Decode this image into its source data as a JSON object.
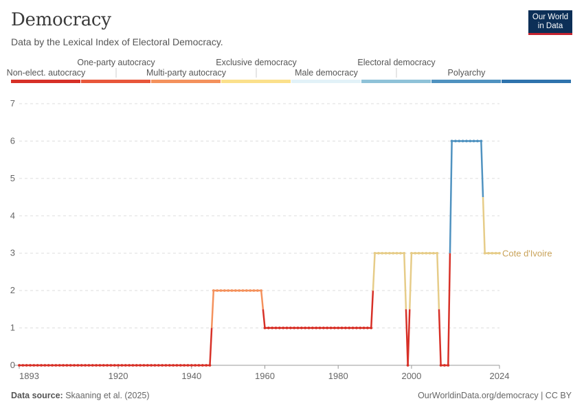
{
  "header": {
    "title": "Democracy",
    "subtitle": "Data by the Lexical Index of Electoral Democracy.",
    "logo_line1": "Our World",
    "logo_line2": "in Data"
  },
  "footer": {
    "source_label": "Data source:",
    "source_text": "Skaaning et al. (2025)",
    "right": "OurWorldinData.org/democracy | CC BY"
  },
  "legend": [
    {
      "label": "Non-elect. autocracy",
      "color": "#d73027"
    },
    {
      "label": "One-party autocracy",
      "color": "#e8563a"
    },
    {
      "label": "Multi-party autocracy",
      "color": "#f4915c"
    },
    {
      "label": "Exclusive democracy",
      "color": "#fbe08b"
    },
    {
      "label": "Male democracy",
      "color": "#e2f2f8"
    },
    {
      "label": "Electoral democracy",
      "color": "#8ec2d8"
    },
    {
      "label": "Polyarchy",
      "color": "#4f92c0"
    },
    {
      "label": "",
      "color": "#2e73ad"
    }
  ],
  "chart_data": {
    "type": "line",
    "xlabel": "",
    "ylabel": "",
    "xlim": [
      1893,
      2024
    ],
    "ylim": [
      0,
      7
    ],
    "x_ticks": [
      1893,
      1920,
      1940,
      1960,
      1980,
      2000,
      2024
    ],
    "y_ticks": [
      0,
      1,
      2,
      3,
      4,
      5,
      6,
      7
    ],
    "grid": "horizontal",
    "series": [
      {
        "name": "Cote d'Ivoire",
        "label_color": "#c9a35a",
        "points": [
          [
            1893,
            0
          ],
          [
            1894,
            0
          ],
          [
            1895,
            0
          ],
          [
            1896,
            0
          ],
          [
            1897,
            0
          ],
          [
            1898,
            0
          ],
          [
            1899,
            0
          ],
          [
            1900,
            0
          ],
          [
            1901,
            0
          ],
          [
            1902,
            0
          ],
          [
            1903,
            0
          ],
          [
            1904,
            0
          ],
          [
            1905,
            0
          ],
          [
            1906,
            0
          ],
          [
            1907,
            0
          ],
          [
            1908,
            0
          ],
          [
            1909,
            0
          ],
          [
            1910,
            0
          ],
          [
            1911,
            0
          ],
          [
            1912,
            0
          ],
          [
            1913,
            0
          ],
          [
            1914,
            0
          ],
          [
            1915,
            0
          ],
          [
            1916,
            0
          ],
          [
            1917,
            0
          ],
          [
            1918,
            0
          ],
          [
            1919,
            0
          ],
          [
            1920,
            0
          ],
          [
            1921,
            0
          ],
          [
            1922,
            0
          ],
          [
            1923,
            0
          ],
          [
            1924,
            0
          ],
          [
            1925,
            0
          ],
          [
            1926,
            0
          ],
          [
            1927,
            0
          ],
          [
            1928,
            0
          ],
          [
            1929,
            0
          ],
          [
            1930,
            0
          ],
          [
            1931,
            0
          ],
          [
            1932,
            0
          ],
          [
            1933,
            0
          ],
          [
            1934,
            0
          ],
          [
            1935,
            0
          ],
          [
            1936,
            0
          ],
          [
            1937,
            0
          ],
          [
            1938,
            0
          ],
          [
            1939,
            0
          ],
          [
            1940,
            0
          ],
          [
            1941,
            0
          ],
          [
            1942,
            0
          ],
          [
            1943,
            0
          ],
          [
            1944,
            0
          ],
          [
            1945,
            0
          ],
          [
            1946,
            2
          ],
          [
            1947,
            2
          ],
          [
            1948,
            2
          ],
          [
            1949,
            2
          ],
          [
            1950,
            2
          ],
          [
            1951,
            2
          ],
          [
            1952,
            2
          ],
          [
            1953,
            2
          ],
          [
            1954,
            2
          ],
          [
            1955,
            2
          ],
          [
            1956,
            2
          ],
          [
            1957,
            2
          ],
          [
            1958,
            2
          ],
          [
            1959,
            2
          ],
          [
            1960,
            1
          ],
          [
            1961,
            1
          ],
          [
            1962,
            1
          ],
          [
            1963,
            1
          ],
          [
            1964,
            1
          ],
          [
            1965,
            1
          ],
          [
            1966,
            1
          ],
          [
            1967,
            1
          ],
          [
            1968,
            1
          ],
          [
            1969,
            1
          ],
          [
            1970,
            1
          ],
          [
            1971,
            1
          ],
          [
            1972,
            1
          ],
          [
            1973,
            1
          ],
          [
            1974,
            1
          ],
          [
            1975,
            1
          ],
          [
            1976,
            1
          ],
          [
            1977,
            1
          ],
          [
            1978,
            1
          ],
          [
            1979,
            1
          ],
          [
            1980,
            1
          ],
          [
            1981,
            1
          ],
          [
            1982,
            1
          ],
          [
            1983,
            1
          ],
          [
            1984,
            1
          ],
          [
            1985,
            1
          ],
          [
            1986,
            1
          ],
          [
            1987,
            1
          ],
          [
            1988,
            1
          ],
          [
            1989,
            1
          ],
          [
            1990,
            3
          ],
          [
            1991,
            3
          ],
          [
            1992,
            3
          ],
          [
            1993,
            3
          ],
          [
            1994,
            3
          ],
          [
            1995,
            3
          ],
          [
            1996,
            3
          ],
          [
            1997,
            3
          ],
          [
            1998,
            3
          ],
          [
            1999,
            0
          ],
          [
            2000,
            3
          ],
          [
            2001,
            3
          ],
          [
            2002,
            3
          ],
          [
            2003,
            3
          ],
          [
            2004,
            3
          ],
          [
            2005,
            3
          ],
          [
            2006,
            3
          ],
          [
            2007,
            3
          ],
          [
            2008,
            0
          ],
          [
            2009,
            0
          ],
          [
            2010,
            0
          ],
          [
            2011,
            6
          ],
          [
            2012,
            6
          ],
          [
            2013,
            6
          ],
          [
            2014,
            6
          ],
          [
            2015,
            6
          ],
          [
            2016,
            6
          ],
          [
            2017,
            6
          ],
          [
            2018,
            6
          ],
          [
            2019,
            6
          ],
          [
            2020,
            3
          ],
          [
            2021,
            3
          ],
          [
            2022,
            3
          ],
          [
            2023,
            3
          ],
          [
            2024,
            3
          ]
        ]
      }
    ]
  },
  "value_colors": {
    "0": "#d73027",
    "1": "#d73027",
    "2": "#f4915c",
    "3": "#e6cc88",
    "6": "#4f92c0"
  }
}
